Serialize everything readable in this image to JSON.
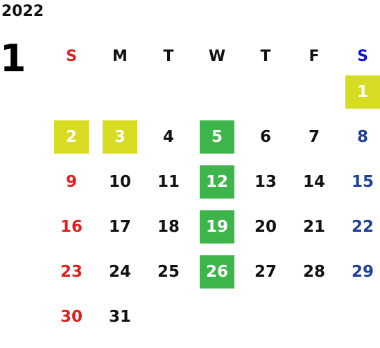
{
  "year": "2022",
  "month": "1",
  "weekdays": [
    "S",
    "M",
    "T",
    "W",
    "T",
    "F",
    "S"
  ],
  "colors": {
    "sunday": "#e0201c",
    "saturday": "#1f3f99",
    "holiday_highlight": "#d7dc22",
    "wednesday_highlight": "#3db54a"
  },
  "weeks": [
    [
      "",
      "",
      "",
      "",
      "",
      "",
      "1"
    ],
    [
      "2",
      "3",
      "4",
      "5",
      "6",
      "7",
      "8"
    ],
    [
      "9",
      "10",
      "11",
      "12",
      "13",
      "14",
      "15"
    ],
    [
      "16",
      "17",
      "18",
      "19",
      "20",
      "21",
      "22"
    ],
    [
      "23",
      "24",
      "25",
      "26",
      "27",
      "28",
      "29"
    ],
    [
      "30",
      "31",
      "",
      "",
      "",
      "",
      ""
    ]
  ],
  "highlighted_holidays": [
    "1",
    "2",
    "3"
  ],
  "highlighted_wednesdays": [
    "5",
    "12",
    "19",
    "26"
  ]
}
